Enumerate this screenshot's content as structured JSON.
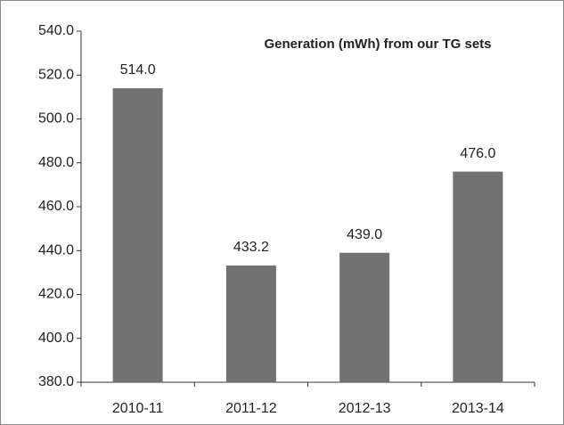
{
  "chart_data": {
    "type": "bar",
    "title": "Generation (mWh) from our TG sets",
    "categories": [
      "2010-11",
      "2011-12",
      "2012-13",
      "2013-14"
    ],
    "values": [
      514.0,
      433.2,
      439.0,
      476.0
    ],
    "value_labels": [
      "514.0",
      "433.2",
      "439.0",
      "476.0"
    ],
    "color": "#717171",
    "ylim": [
      380,
      540
    ],
    "yticks": [
      {
        "value": 380,
        "label": "380.0"
      },
      {
        "value": 400,
        "label": "400.0"
      },
      {
        "value": 420,
        "label": "420.0"
      },
      {
        "value": 440,
        "label": "440.0"
      },
      {
        "value": 460,
        "label": "460.0"
      },
      {
        "value": 480,
        "label": "480.0"
      },
      {
        "value": 500,
        "label": "500.0"
      },
      {
        "value": 520,
        "label": "520.0"
      },
      {
        "value": 540,
        "label": "540.0"
      }
    ],
    "grid": false
  }
}
